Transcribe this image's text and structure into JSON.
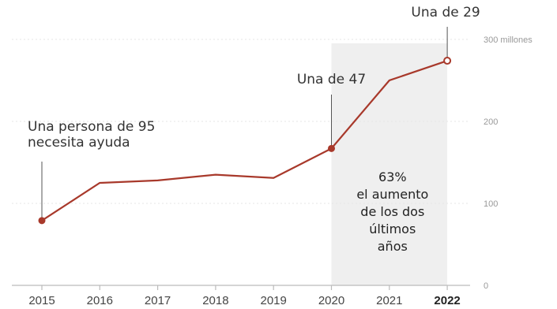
{
  "colors": {
    "line": "#a8392b",
    "shade": "#efefef",
    "grid": "#e6e6e6",
    "axis": "#bbbbbb",
    "text": "#333333"
  },
  "chart_data": {
    "type": "line",
    "x": [
      "2015",
      "2016",
      "2017",
      "2018",
      "2019",
      "2020",
      "2021",
      "2022"
    ],
    "series": [
      {
        "values": [
          79,
          125,
          128,
          135,
          131,
          167,
          250,
          274
        ]
      }
    ],
    "ylim": [
      0,
      300
    ],
    "yticks": [
      {
        "value": 0,
        "label": "0"
      },
      {
        "value": 100,
        "label": "100"
      },
      {
        "value": 200,
        "label": "200"
      },
      {
        "value": 300,
        "label": "300 millones"
      }
    ],
    "highlight_x": "2022",
    "shaded_range": [
      "2020",
      "2022"
    ],
    "grid": true,
    "annotations": [
      {
        "x": "2015",
        "lines": [
          "Una persona de 95",
          "necesita ayuda"
        ]
      },
      {
        "x": "2020",
        "lines": [
          "Una de 47"
        ]
      },
      {
        "x": "2022",
        "lines": [
          "Una de 29"
        ]
      }
    ],
    "shaded_text": [
      "63%",
      "el aumento",
      "de los dos",
      "últimos",
      "años"
    ]
  }
}
